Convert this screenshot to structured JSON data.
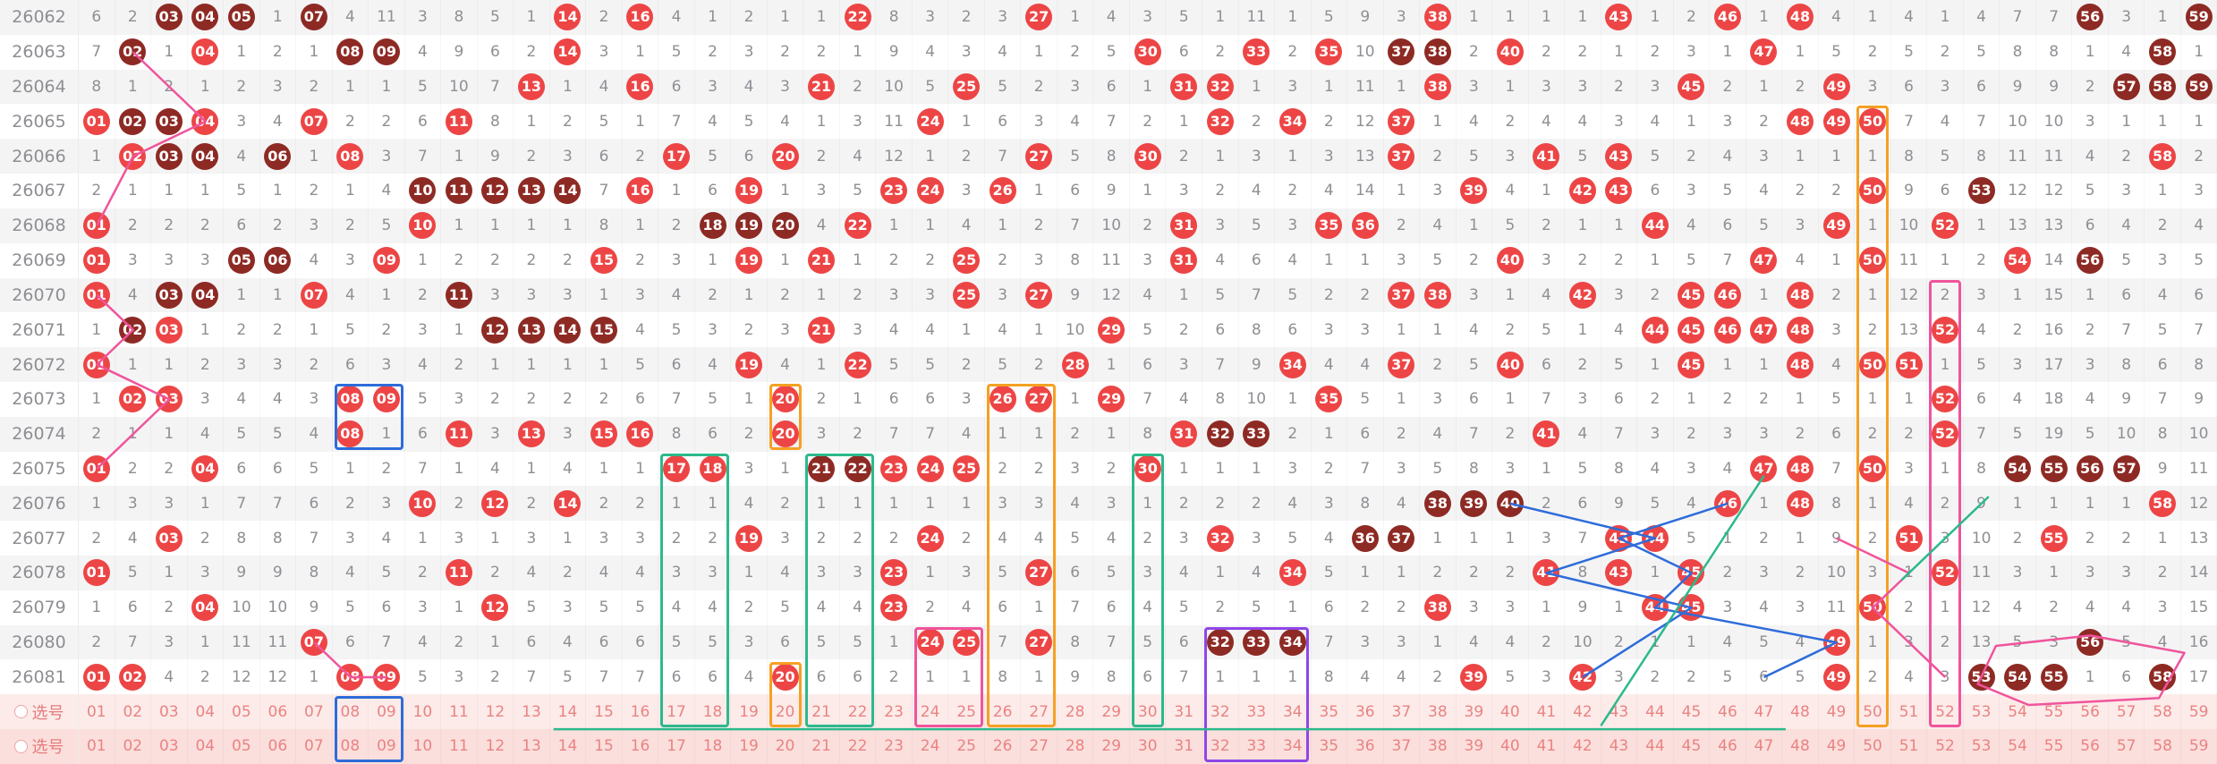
{
  "chart_data": {
    "type": "table",
    "title": "",
    "description": "Lottery number trend chart: draw ids vs numbers 01-59; cells show miss counts, R## = red drawn-number circle, D## = dark-red drawn-number circle",
    "cell_encoding": {
      "R": "red-circle drawn number",
      "D": "dark-circle drawn number",
      "plain": "miss count"
    },
    "rows": [
      {
        "id": "26062",
        "cells": "6 2 D03 D04 D05 1 D07 4 11 3 8 5 1 R14 2 R16 4 1 2 1 1 R22 8 3 2 3 R27 1 4 3 5 1 11 1 5 9 3 R38 1 1 1 1 R43 1 2 R46 1 R48 4 1 4 1 4 7 7 D56 3 1 D59"
      },
      {
        "id": "26063",
        "cells": "7 D02 1 R04 1 2 1 D08 D09 4 9 6 2 R14 3 1 5 2 3 2 2 1 9 4 3 4 1 2 5 R30 6 2 R33 2 R35 10 D37 D38 2 R40 2 2 1 2 3 1 R47 1 5 2 5 2 5 8 8 1 4 D58 1"
      },
      {
        "id": "26064",
        "cells": "8 1 2 1 2 3 2 1 1 5 10 7 R13 1 4 R16 6 3 4 3 R21 2 10 5 R25 5 2 3 6 1 R31 R32 1 3 1 11 1 R38 3 1 3 3 2 3 R45 2 1 2 R49 3 6 3 6 9 9 2 D57 D58 D59"
      },
      {
        "id": "26065",
        "cells": "R01 D02 D03 R04 3 4 R07 2 2 6 R11 8 1 2 5 1 7 4 5 4 1 3 11 R24 1 6 3 4 7 2 1 R32 2 R34 2 12 R37 1 4 2 4 4 3 4 1 3 2 R48 R49 R50 7 4 7 10 10 3 1 1 1"
      },
      {
        "id": "26066",
        "cells": "1 R02 D03 D04 4 D06 1 R08 3 7 1 9 2 3 6 2 R17 5 6 R20 2 4 12 1 2 7 R27 5 8 R30 2 1 3 1 3 13 R37 2 5 3 R41 5 R43 5 2 4 3 1 1 1 8 5 8 11 11 4 2 R58 2"
      },
      {
        "id": "26067",
        "cells": "2 1 1 1 5 1 2 1 4 D10 D11 D12 D13 D14 7 R16 1 6 R19 1 3 5 R23 R24 3 R26 1 6 9 1 3 2 4 2 4 14 1 3 R39 4 1 R42 R43 6 3 5 4 2 2 R50 9 6 D53 12 12 5 3 1 3"
      },
      {
        "id": "26068",
        "cells": "R01 2 2 2 6 2 3 2 5 R10 1 1 1 1 8 1 2 D18 D19 D20 4 R22 1 1 4 1 2 7 10 2 R31 3 5 3 R35 R36 2 4 1 5 2 1 1 R44 4 6 5 3 R49 1 10 R52 1 13 13 6 4 2 4"
      },
      {
        "id": "26069",
        "cells": "R01 3 3 3 D05 D06 4 3 R09 1 2 2 2 2 R15 2 3 1 R19 1 R21 1 2 2 R25 2 3 8 11 3 R31 4 6 4 1 1 3 5 2 R40 3 2 2 1 5 7 R47 4 1 R50 11 1 2 R54 14 D56 5 3 5"
      },
      {
        "id": "26070",
        "cells": "R01 4 D03 D04 1 1 R07 4 1 2 D11 3 3 3 1 3 4 2 1 2 1 2 3 3 R25 3 R27 9 12 4 1 5 7 5 2 2 R37 R38 3 1 4 R42 3 2 R45 R46 1 R48 2 1 12 2 3 1 15 1 6 4 6"
      },
      {
        "id": "26071",
        "cells": "1 D02 R03 1 2 2 1 5 2 3 1 D12 D13 D14 D15 4 5 3 2 3 R21 3 4 4 1 4 1 10 R29 5 2 6 8 6 3 3 1 1 4 2 5 1 4 R44 R45 R46 R47 R48 3 2 13 R52 4 2 16 2 7 5 7"
      },
      {
        "id": "26072",
        "cells": "R01 1 1 2 3 3 2 6 3 4 2 1 1 1 1 5 6 4 R19 4 1 R22 5 5 2 5 2 R28 1 6 3 7 9 R34 4 4 R37 2 5 R40 6 2 5 1 R45 1 1 R48 4 R50 R51 1 5 3 17 3 8 6 8"
      },
      {
        "id": "26073",
        "cells": "1 R02 R03 3 4 4 3 R08 R09 5 3 2 2 2 2 6 7 5 1 R20 2 1 6 6 3 R26 R27 1 R29 7 4 8 10 1 R35 5 1 3 6 1 7 3 6 2 1 2 2 1 5 1 1 R52 6 4 18 4 9 7 9"
      },
      {
        "id": "26074",
        "cells": "2 1 1 4 5 5 4 R08 1 6 R11 3 R13 3 R15 R16 8 6 2 R20 3 2 7 7 4 1 1 2 1 8 R31 D32 D33 2 1 6 2 4 7 2 R41 4 7 3 2 3 3 2 6 2 2 R52 7 5 19 5 10 8 10"
      },
      {
        "id": "26075",
        "cells": "R01 2 2 R04 6 6 5 1 2 7 1 4 1 4 1 1 R17 R18 3 1 D21 D22 R23 R24 R25 2 2 3 2 R30 1 1 1 3 2 7 3 5 8 3 1 5 8 4 3 4 R47 R48 7 R50 3 1 8 D54 D55 D56 D57 9 11"
      },
      {
        "id": "26076",
        "cells": "1 3 3 1 7 7 6 2 3 R10 2 R12 2 R14 2 2 1 1 4 2 1 1 1 1 1 3 3 4 3 1 2 2 2 4 3 8 4 D38 D39 D40 2 6 9 5 4 R46 1 R48 8 1 4 2 9 1 1 1 1 R58 12"
      },
      {
        "id": "26077",
        "cells": "2 4 R03 2 8 8 7 3 4 1 3 1 3 1 3 3 2 2 R19 3 2 2 2 R24 2 4 4 5 4 2 3 R32 3 5 4 D36 D37 1 1 1 3 7 R43 R44 5 1 2 1 9 2 R51 3 10 2 R55 2 2 1 13"
      },
      {
        "id": "26078",
        "cells": "R01 5 1 3 9 9 8 4 5 2 R11 2 4 2 4 4 3 3 1 4 3 3 R23 1 3 5 R27 6 5 3 4 1 4 R34 5 1 1 2 2 2 R41 8 R43 1 R45 2 3 2 10 3 1 R52 11 3 1 3 3 2 14"
      },
      {
        "id": "26079",
        "cells": "1 6 2 R04 10 10 9 5 6 3 1 R12 5 3 5 5 4 4 2 5 4 4 R23 2 4 6 1 7 6 4 5 2 5 1 6 2 2 R38 3 3 1 9 1 R44 R45 3 4 3 11 R50 2 1 12 4 2 4 4 3 15"
      },
      {
        "id": "26080",
        "cells": "2 7 3 1 11 11 R07 6 7 4 2 1 6 4 6 6 5 5 3 6 5 5 1 R24 R25 7 R27 8 7 5 6 D32 D33 D34 7 3 3 1 4 4 2 10 2 1 1 4 5 4 R49 1 3 2 13 5 3 D56 5 4 16"
      },
      {
        "id": "26081",
        "cells": "R01 R02 4 2 12 12 1 R08 R09 5 3 2 7 5 7 7 6 6 4 R20 6 6 2 1 1 8 1 9 8 6 7 1 1 1 8 4 4 2 R39 5 3 R42 3 2 2 5 6 5 R49 2 4 3 D53 D54 D55 1 6 D58 17"
      }
    ]
  },
  "footer": {
    "labels": [
      "选号",
      "选号"
    ],
    "numbers": "01 02 03 04 05 06 07 08 09 10 11 12 13 14 15 16 17 18 19 20 21 22 23 24 25 26 27 28 29 30 31 32 33 34 35 36 37 38 39 40 41 42 43 44 45 46 47 48 49 50 51 52 53 54 55 56 57 58 59"
  },
  "colors": {
    "red": "#ed4545",
    "dark": "#8e2a24",
    "plain": "#8f8f94",
    "blue": "#2e6cd9",
    "orange": "#f5a023",
    "teal": "#2cb98c",
    "pink": "#f0549b",
    "purple": "#8f46e8",
    "footer_text": "#e98383",
    "stripe": "#f4f4f5"
  },
  "annotations": {
    "boxes": [
      {
        "color": "blue",
        "c1": 8,
        "c2": 9,
        "r1": 11,
        "r2": 12
      },
      {
        "color": "blue",
        "c1": 8,
        "c2": 9,
        "r1": 20,
        "r2": 21
      },
      {
        "color": "orange",
        "c1": 20,
        "c2": 20,
        "r1": 11,
        "r2": 12
      },
      {
        "color": "orange",
        "c1": 20,
        "c2": 20,
        "r1": 19,
        "r2": 20
      },
      {
        "color": "teal",
        "c1": 17,
        "c2": 18,
        "r1": 13,
        "r2": 20
      },
      {
        "color": "teal",
        "c1": 21,
        "c2": 22,
        "r1": 13,
        "r2": 20
      },
      {
        "color": "teal",
        "c1": 30,
        "c2": 30,
        "r1": 13,
        "r2": 20
      },
      {
        "color": "orange",
        "c1": 26,
        "c2": 27,
        "r1": 11,
        "r2": 20
      },
      {
        "color": "pink",
        "c1": 24,
        "c2": 25,
        "r1": 18,
        "r2": 20
      },
      {
        "color": "purple",
        "c1": 32,
        "c2": 34,
        "r1": 18,
        "r2": 21
      },
      {
        "color": "orange",
        "c1": 50,
        "c2": 50,
        "r1": 3,
        "r2": 20
      },
      {
        "color": "pink",
        "c1": 52,
        "c2": 52,
        "r1": 8,
        "r2": 20
      }
    ],
    "lines": [
      {
        "color": "pink",
        "points": [
          [
            2,
            1
          ],
          [
            4,
            3
          ],
          [
            2,
            4
          ],
          [
            1,
            6
          ]
        ]
      },
      {
        "color": "pink",
        "points": [
          [
            1,
            8
          ],
          [
            2,
            9
          ],
          [
            1,
            10
          ],
          [
            3,
            11
          ],
          [
            2,
            12
          ],
          [
            1,
            13
          ]
        ]
      },
      {
        "color": "pink",
        "points": [
          [
            7,
            18
          ],
          [
            8,
            19
          ],
          [
            9,
            19
          ]
        ]
      },
      {
        "color": "pink",
        "points": [
          [
            49,
            15
          ],
          [
            51,
            16
          ],
          [
            50,
            17
          ],
          [
            52,
            19
          ]
        ]
      },
      {
        "color": "blue",
        "points": [
          [
            40,
            14
          ],
          [
            44,
            15
          ],
          [
            41,
            16
          ],
          [
            45,
            17
          ],
          [
            42,
            19
          ]
        ]
      },
      {
        "color": "blue",
        "points": [
          [
            46,
            14
          ],
          [
            43,
            15
          ],
          [
            45,
            16
          ],
          [
            44,
            17
          ],
          [
            49,
            18
          ],
          [
            47,
            19
          ]
        ]
      },
      {
        "color": "teal",
        "points": [
          [
            47,
            13.2
          ],
          [
            42.5,
            20.4
          ]
        ]
      },
      {
        "color": "teal",
        "points": [
          [
            53.2,
            13.8
          ],
          [
            50.8,
            16.2
          ]
        ]
      },
      {
        "color": "teal",
        "points": [
          [
            13.6,
            20.5
          ],
          [
            47.6,
            20.5
          ]
        ]
      }
    ],
    "polygons": [
      {
        "color": "pink",
        "points": [
          [
            53.4,
            18.1
          ],
          [
            56,
            17.8
          ],
          [
            58.6,
            18.3
          ],
          [
            57.9,
            19.6
          ],
          [
            54.3,
            19.8
          ],
          [
            52.9,
            19.2
          ]
        ]
      }
    ]
  }
}
